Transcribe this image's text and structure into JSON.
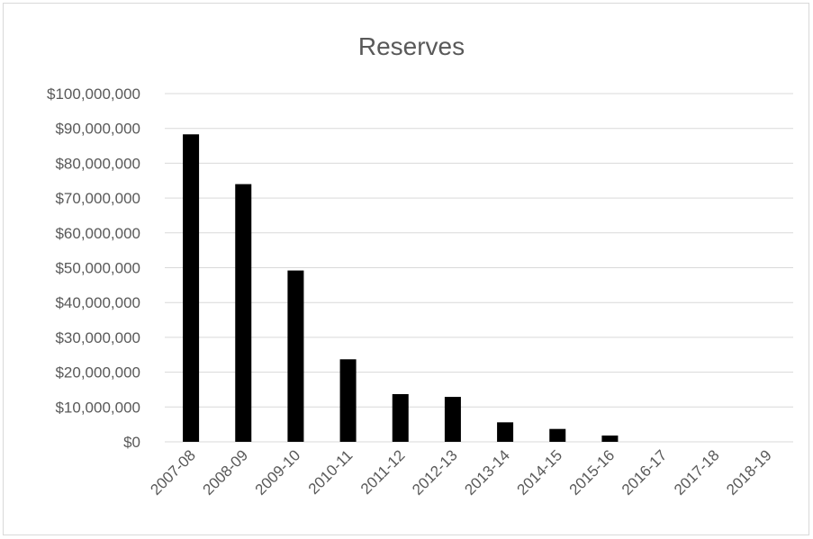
{
  "chart_data": {
    "type": "bar",
    "title": "Reserves",
    "xlabel": "",
    "ylabel": "",
    "categories": [
      "2007-08",
      "2008-09",
      "2009-10",
      "2010-11",
      "2011-12",
      "2012-13",
      "2013-14",
      "2014-15",
      "2015-16",
      "2016-17",
      "2017-18",
      "2018-19"
    ],
    "values": [
      88300000,
      74000000,
      49200000,
      23700000,
      13700000,
      12900000,
      5600000,
      3700000,
      1800000,
      0,
      0,
      0
    ],
    "ylim": [
      0,
      100000000
    ],
    "yticks": [
      0,
      10000000,
      20000000,
      30000000,
      40000000,
      50000000,
      60000000,
      70000000,
      80000000,
      90000000,
      100000000
    ],
    "ytick_labels": [
      "$0",
      "$10,000,000",
      "$20,000,000",
      "$30,000,000",
      "$40,000,000",
      "$50,000,000",
      "$60,000,000",
      "$70,000,000",
      "$80,000,000",
      "$90,000,000",
      "$100,000,000"
    ],
    "grid": true,
    "legend": "none",
    "bar_color": "#000000",
    "grid_color": "#d9d9d9",
    "text_color": "#595959"
  }
}
